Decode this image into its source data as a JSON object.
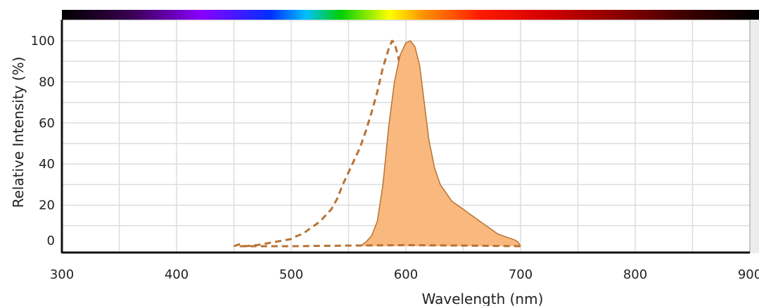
{
  "chart_data": {
    "type": "line",
    "title": "",
    "xlabel": "Wavelength (nm)",
    "ylabel": "Relative Intensity (%)",
    "xlim": [
      300,
      900
    ],
    "ylim": [
      0,
      110
    ],
    "x_ticks": [
      300,
      400,
      500,
      600,
      700,
      800,
      900
    ],
    "y_ticks": [
      0,
      20,
      40,
      60,
      80,
      100
    ],
    "grid": true,
    "legend": "none",
    "spectrum_bar": true,
    "series": [
      {
        "style": "dashed",
        "color": "#b87333",
        "fill": false,
        "points": [
          [
            450,
            0
          ],
          [
            455,
            1
          ],
          [
            460,
            0
          ],
          [
            470,
            0.5
          ],
          [
            480,
            1.5
          ],
          [
            490,
            2.5
          ],
          [
            500,
            3.5
          ],
          [
            505,
            5
          ],
          [
            510,
            6
          ],
          [
            515,
            8
          ],
          [
            520,
            10
          ],
          [
            525,
            12
          ],
          [
            530,
            15
          ],
          [
            535,
            18
          ],
          [
            540,
            23
          ],
          [
            545,
            30
          ],
          [
            550,
            36
          ],
          [
            555,
            42
          ],
          [
            560,
            48
          ],
          [
            565,
            56
          ],
          [
            570,
            65
          ],
          [
            575,
            75
          ],
          [
            580,
            87
          ],
          [
            585,
            96
          ],
          [
            588,
            100
          ],
          [
            590,
            99
          ],
          [
            593,
            93
          ],
          [
            597,
            82
          ],
          [
            600,
            70
          ],
          [
            603,
            54
          ],
          [
            606,
            38
          ],
          [
            609,
            24
          ],
          [
            612,
            13
          ],
          [
            615,
            6
          ],
          [
            618,
            2
          ],
          [
            620,
            0
          ]
        ]
      },
      {
        "style": "solid",
        "color": "#b87333",
        "fill": true,
        "fill_color": "#f9b87e",
        "points": [
          [
            560,
            0
          ],
          [
            565,
            2
          ],
          [
            570,
            5
          ],
          [
            575,
            12
          ],
          [
            580,
            30
          ],
          [
            585,
            58
          ],
          [
            590,
            80
          ],
          [
            595,
            93
          ],
          [
            600,
            99
          ],
          [
            604,
            100
          ],
          [
            608,
            97
          ],
          [
            612,
            88
          ],
          [
            616,
            70
          ],
          [
            620,
            52
          ],
          [
            625,
            38
          ],
          [
            630,
            30
          ],
          [
            635,
            26
          ],
          [
            640,
            22
          ],
          [
            645,
            20
          ],
          [
            650,
            18
          ],
          [
            655,
            16
          ],
          [
            660,
            14
          ],
          [
            665,
            12
          ],
          [
            670,
            10
          ],
          [
            675,
            8
          ],
          [
            680,
            6
          ],
          [
            685,
            5
          ],
          [
            690,
            4
          ],
          [
            695,
            3
          ],
          [
            698,
            2
          ],
          [
            700,
            0
          ]
        ]
      },
      {
        "style": "dashed",
        "color": "#b87333",
        "fill": false,
        "points": [
          [
            455,
            0
          ],
          [
            500,
            0
          ],
          [
            550,
            0.3
          ],
          [
            600,
            0.5
          ],
          [
            650,
            0.3
          ],
          [
            700,
            0
          ]
        ]
      }
    ]
  }
}
